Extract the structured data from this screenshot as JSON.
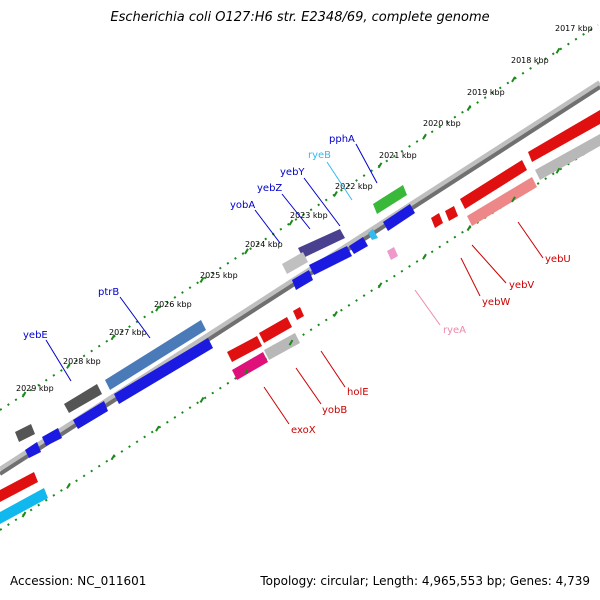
{
  "title": "Escherichia coli O127:H6 str. E2348/69, complete genome",
  "footer": {
    "accession": "Accession: NC_011601",
    "summary": "Topology: circular; Length: 4,965,553 bp; Genes: 4,739"
  },
  "ticks": [
    "2017 kbp",
    "2018 kbp",
    "2019 kbp",
    "2020 kbp",
    "2021 kbp",
    "2022 kbp",
    "2023 kbp",
    "2024 kbp",
    "2025 kbp",
    "2026 kbp",
    "2027 kbp",
    "2028 kbp",
    "2029 kbp"
  ],
  "genes_outer": [
    {
      "label": "pphA",
      "color": "#0000cc"
    },
    {
      "label": "ryeB",
      "color": "#33bbee"
    },
    {
      "label": "yebY",
      "color": "#0000cc"
    },
    {
      "label": "yebZ",
      "color": "#0000cc"
    },
    {
      "label": "yobA",
      "color": "#0000cc"
    },
    {
      "label": "ptrB",
      "color": "#0000cc"
    },
    {
      "label": "yebE",
      "color": "#0000cc"
    }
  ],
  "genes_inner": [
    {
      "label": "yebU",
      "color": "#cc0000"
    },
    {
      "label": "yebV",
      "color": "#cc0000"
    },
    {
      "label": "yebW",
      "color": "#cc0000"
    },
    {
      "label": "ryeA",
      "color": "#ee88aa"
    },
    {
      "label": "holE",
      "color": "#cc0000"
    },
    {
      "label": "yobB",
      "color": "#cc0000"
    },
    {
      "label": "exoX",
      "color": "#cc0000"
    }
  ]
}
